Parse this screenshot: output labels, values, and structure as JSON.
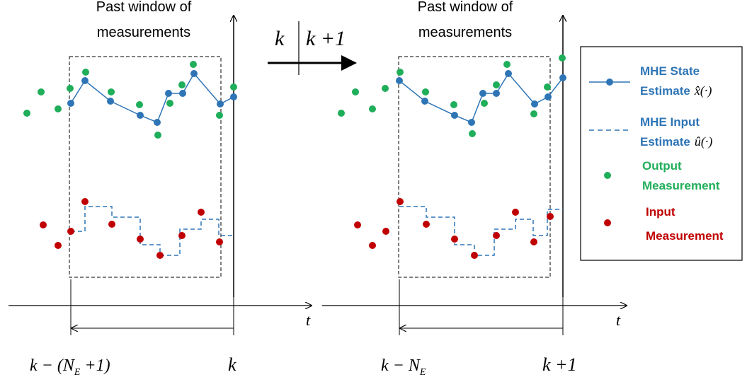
{
  "colors": {
    "state": "#2e75b6",
    "output": "#1fae5a",
    "input": "#c00000",
    "frame": "#000000"
  },
  "left_panel": {
    "title_line1": "Past window of",
    "title_line2": "measurements",
    "time_axis_label": "t",
    "window_start_label": "k − (N",
    "window_start_sub": "E",
    "window_start_tail": " +1)",
    "window_end_label": "k"
  },
  "right_panel": {
    "title_line1": "Past window of",
    "title_line2": "measurements",
    "time_axis_label": "t",
    "window_start_label": "k − N",
    "window_start_sub": "E",
    "window_end_label": "k +1"
  },
  "transition": {
    "from": "k",
    "to": "k +1"
  },
  "legend": {
    "state_line1": "MHE State",
    "state_line2": "Estimate",
    "state_symbol": "x̂(·)",
    "input_est_line1": "MHE Input",
    "input_est_line2": "Estimate",
    "input_est_symbol": "û(·)",
    "output_line1": "Output",
    "output_line2": "Measurement",
    "input_meas_line1": "Input",
    "input_meas_line2": "Measurement"
  }
}
